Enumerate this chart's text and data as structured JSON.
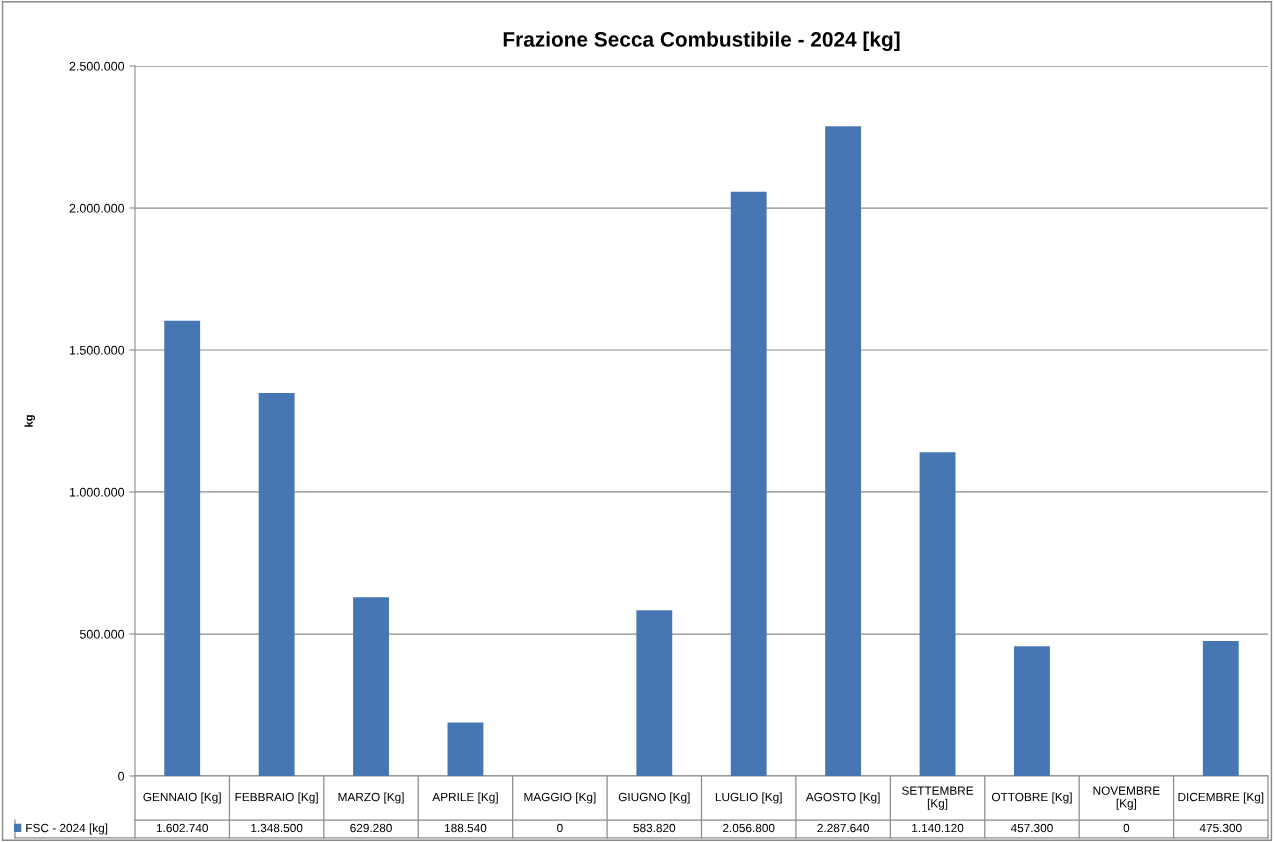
{
  "chart_data": {
    "type": "bar",
    "title": "Frazione Secca Combustibile - 2024 [kg]",
    "ylabel": "kg",
    "categories": [
      "GENNAIO [Kg]",
      "FEBBRAIO [Kg]",
      "MARZO [Kg]",
      "APRILE [Kg]",
      "MAGGIO [Kg]",
      "GIUGNO [Kg]",
      "LUGLIO [Kg]",
      "AGOSTO [Kg]",
      "SETTEMBRE [Kg]",
      "OTTOBRE [Kg]",
      "NOVEMBRE [Kg]",
      "DICEMBRE [Kg]"
    ],
    "series": [
      {
        "name": "FSC - 2024 [kg]",
        "color": "#4677b2",
        "values": [
          1602740,
          1348500,
          629280,
          188540,
          0,
          583820,
          2056800,
          2287640,
          1140120,
          457300,
          0,
          475300
        ],
        "value_labels": [
          "1.602.740",
          "1.348.500",
          "629.280",
          "188.540",
          "0",
          "583.820",
          "2.056.800",
          "2.287.640",
          "1.140.120",
          "457.300",
          "0",
          "475.300"
        ]
      }
    ],
    "ylim": [
      0,
      2500000
    ],
    "yticks": [
      {
        "value": 0,
        "label": "0"
      },
      {
        "value": 500000,
        "label": "500.000"
      },
      {
        "value": 1000000,
        "label": "1.000.000"
      },
      {
        "value": 1500000,
        "label": "1.500.000"
      },
      {
        "value": 2000000,
        "label": "2.000.000"
      },
      {
        "value": 2500000,
        "label": "2.500.000"
      }
    ],
    "grid": "y",
    "legend": "bottom left"
  }
}
